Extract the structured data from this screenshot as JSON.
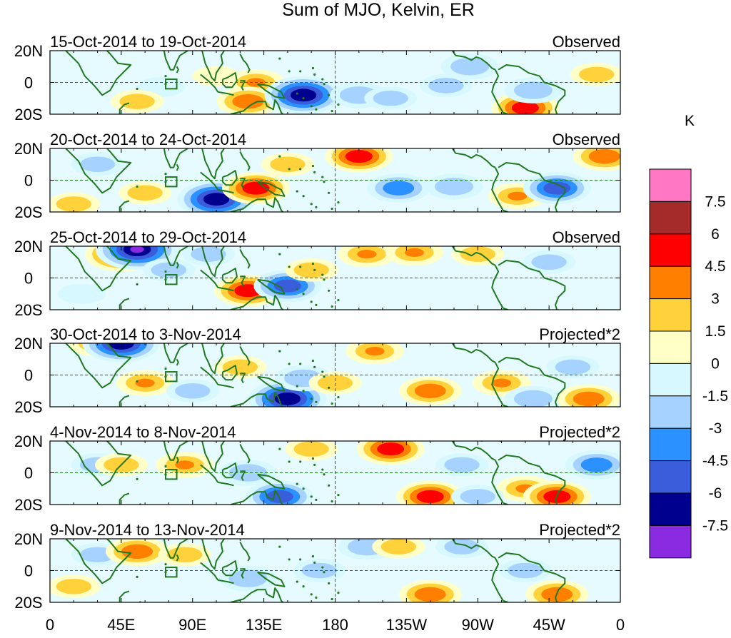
{
  "title": "Sum of MJO, Kelvin, ER",
  "panels": [
    {
      "dates": "15-Oct-2014 to 19-Oct-2014",
      "status": "Observed"
    },
    {
      "dates": "20-Oct-2014 to 24-Oct-2014",
      "status": "Observed"
    },
    {
      "dates": "25-Oct-2014 to 29-Oct-2014",
      "status": "Observed"
    },
    {
      "dates": "30-Oct-2014 to 3-Nov-2014",
      "status": "Projected*2"
    },
    {
      "dates": "4-Nov-2014 to 8-Nov-2014",
      "status": "Projected*2"
    },
    {
      "dates": "9-Nov-2014 to 13-Nov-2014",
      "status": "Projected*2"
    }
  ],
  "lat_labels": [
    "20N",
    "0",
    "20S"
  ],
  "lon_labels": [
    "0",
    "45E",
    "90E",
    "135E",
    "180",
    "135W",
    "90W",
    "45W",
    "0"
  ],
  "colorbar": {
    "unit": "K",
    "colors": [
      "#ff77c2",
      "#a52a2a",
      "#ff0000",
      "#ff7f00",
      "#ffd23c",
      "#ffffc6",
      "#d7f8ff",
      "#a6d2ff",
      "#2b91ff",
      "#3a5ddb",
      "#00008f",
      "#8a2be2"
    ],
    "labels": [
      "7.5",
      "6",
      "4.5",
      "3",
      "1.5",
      "0",
      "-1.5",
      "-3",
      "-4.5",
      "-6",
      "-7.5"
    ]
  },
  "anomaly_blobs": [
    [
      [
        70,
        -3,
        -1
      ],
      [
        105,
        4,
        1
      ],
      [
        130,
        0,
        3
      ],
      [
        125,
        -12,
        4
      ],
      [
        160,
        -8,
        -7
      ],
      [
        195,
        -8,
        -3
      ],
      [
        215,
        -10,
        -2
      ],
      [
        250,
        -2,
        -2
      ],
      [
        265,
        10,
        -3
      ],
      [
        300,
        -16,
        5
      ],
      [
        305,
        -5,
        -3
      ],
      [
        345,
        5,
        2
      ],
      [
        55,
        -12,
        2
      ]
    ],
    [
      [
        30,
        10,
        -2
      ],
      [
        60,
        -8,
        2
      ],
      [
        105,
        -12,
        -7
      ],
      [
        130,
        -5,
        5
      ],
      [
        150,
        10,
        2
      ],
      [
        195,
        15,
        5
      ],
      [
        220,
        -5,
        -4
      ],
      [
        255,
        -4,
        -3
      ],
      [
        295,
        -10,
        3
      ],
      [
        320,
        -5,
        -5
      ],
      [
        350,
        15,
        4
      ],
      [
        15,
        -15,
        2
      ]
    ],
    [
      [
        45,
        15,
        6
      ],
      [
        55,
        18,
        -8
      ],
      [
        75,
        5,
        -2
      ],
      [
        125,
        -8,
        5
      ],
      [
        150,
        -5,
        -5
      ],
      [
        165,
        5,
        2
      ],
      [
        200,
        15,
        3
      ],
      [
        230,
        16,
        3
      ],
      [
        270,
        15,
        2
      ],
      [
        315,
        10,
        -2
      ],
      [
        100,
        15,
        -2
      ],
      [
        20,
        -10,
        -1
      ]
    ],
    [
      [
        30,
        20,
        3
      ],
      [
        45,
        20,
        -7
      ],
      [
        60,
        -5,
        3
      ],
      [
        90,
        -10,
        -2
      ],
      [
        120,
        5,
        2
      ],
      [
        150,
        -15,
        -7
      ],
      [
        160,
        -2,
        -3
      ],
      [
        180,
        -5,
        2
      ],
      [
        205,
        15,
        3
      ],
      [
        240,
        -10,
        4
      ],
      [
        285,
        -5,
        3
      ],
      [
        305,
        -15,
        -3
      ],
      [
        340,
        -15,
        4
      ],
      [
        330,
        5,
        -2
      ]
    ],
    [
      [
        30,
        5,
        -2
      ],
      [
        45,
        5,
        2
      ],
      [
        85,
        5,
        3
      ],
      [
        125,
        0,
        -3
      ],
      [
        145,
        -15,
        -5
      ],
      [
        165,
        15,
        2
      ],
      [
        215,
        15,
        5
      ],
      [
        240,
        -15,
        5
      ],
      [
        260,
        5,
        -2
      ],
      [
        300,
        -10,
        3
      ],
      [
        320,
        -15,
        5
      ],
      [
        345,
        5,
        -4
      ],
      [
        270,
        -15,
        -2
      ]
    ],
    [
      [
        30,
        10,
        -2
      ],
      [
        55,
        12,
        4
      ],
      [
        85,
        10,
        2
      ],
      [
        125,
        -5,
        -3
      ],
      [
        170,
        0,
        -2
      ],
      [
        200,
        15,
        -3
      ],
      [
        220,
        15,
        2
      ],
      [
        240,
        -15,
        4
      ],
      [
        260,
        15,
        -2
      ],
      [
        300,
        0,
        -2
      ],
      [
        320,
        -15,
        4
      ],
      [
        15,
        -10,
        2
      ]
    ]
  ]
}
